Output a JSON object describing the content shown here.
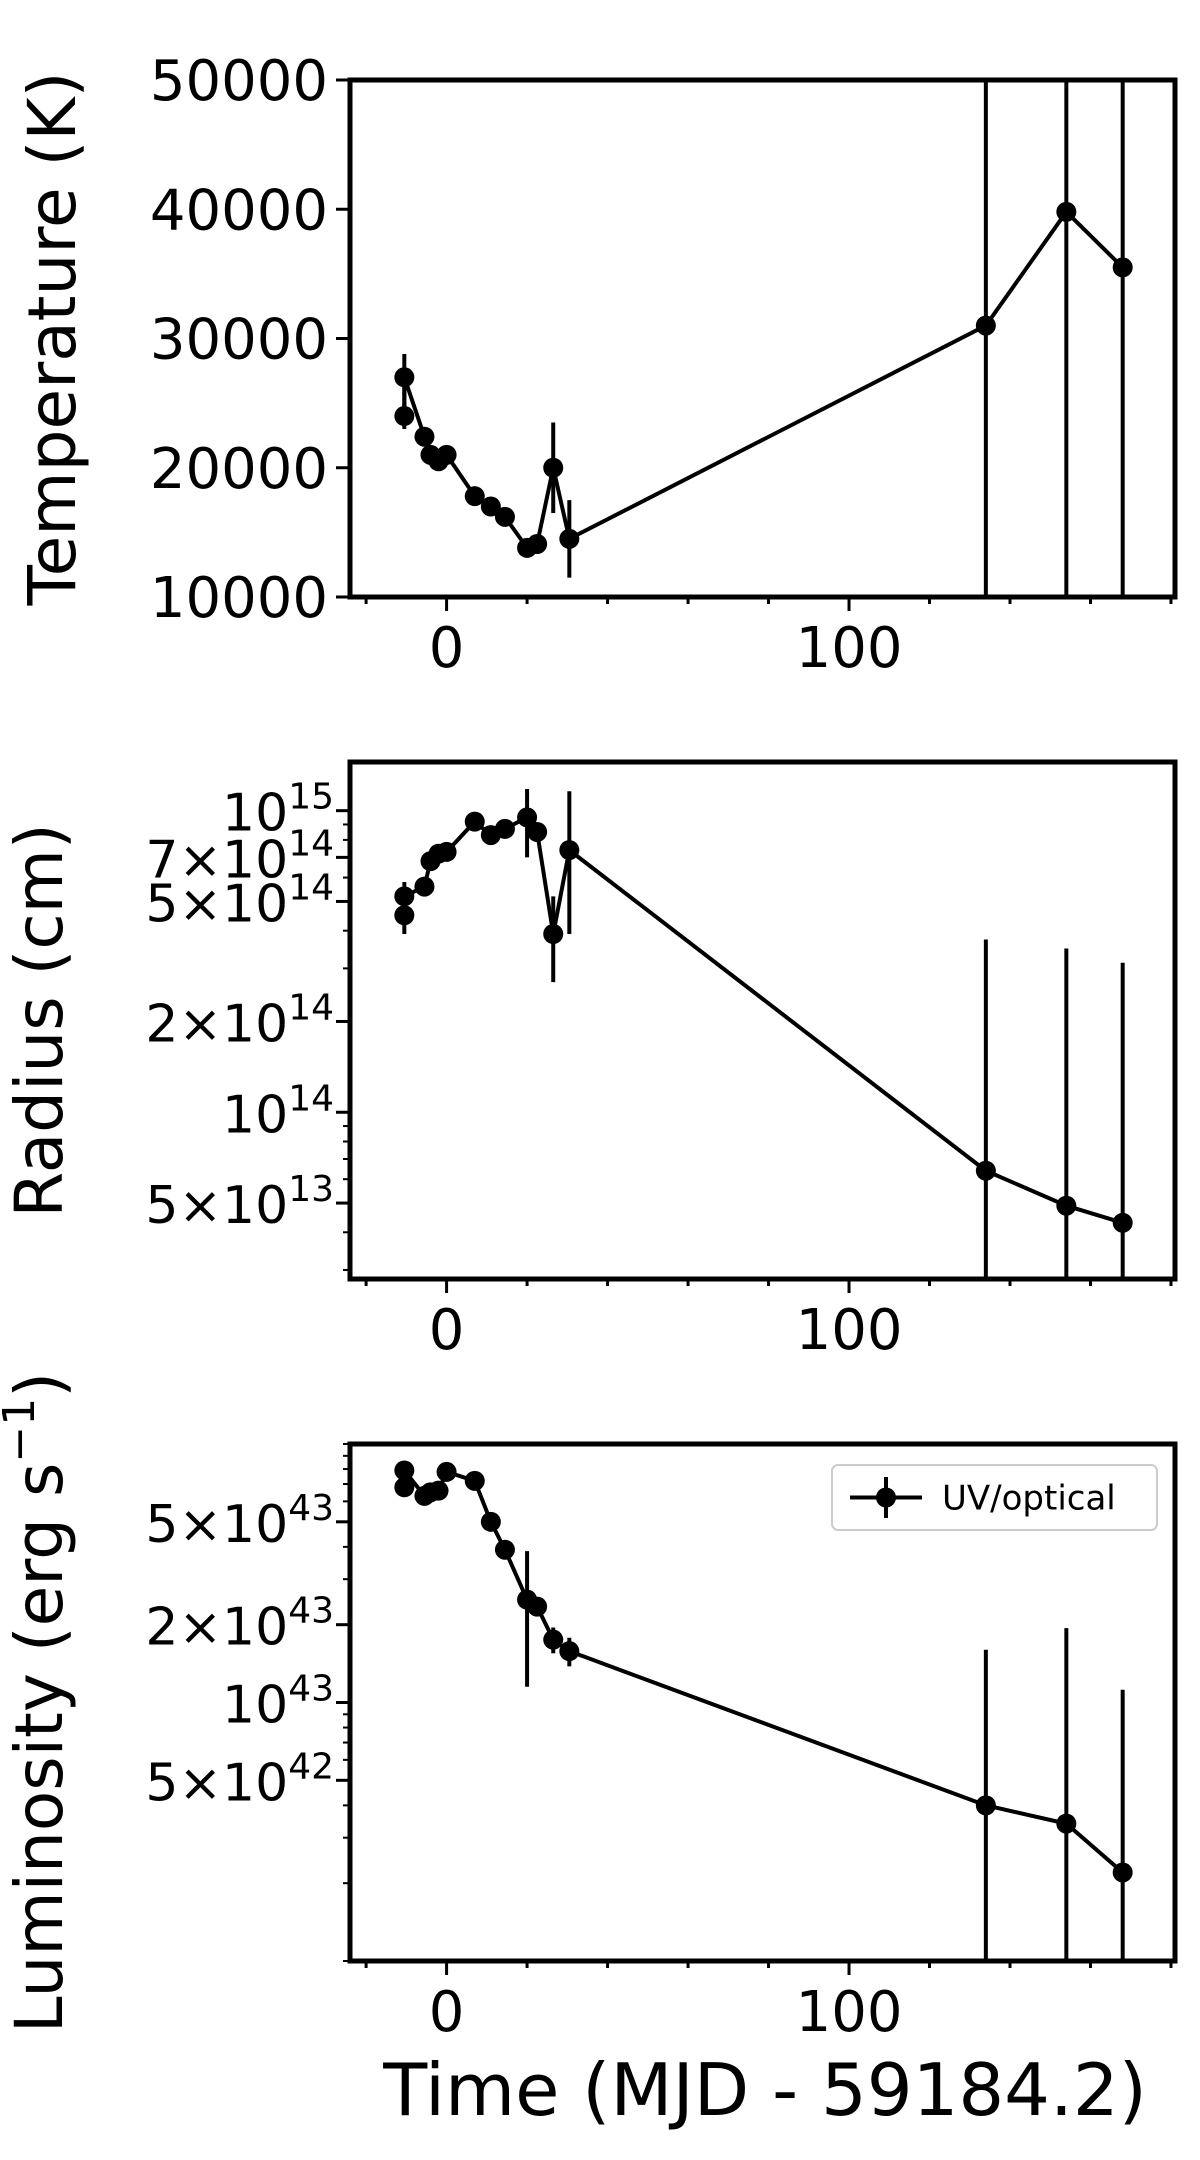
{
  "figure": {
    "xlabel": "Time (MJD - 59184.2)"
  },
  "chart_data": [
    {
      "type": "line",
      "ylabel": "Temperature (K)",
      "xlim": [
        -24,
        181
      ],
      "ylim": [
        10000,
        50000
      ],
      "yscale": "linear",
      "xticks": [
        0,
        100
      ],
      "xtick_labels": [
        "0",
        "100"
      ],
      "yticks": [
        10000,
        20000,
        30000,
        40000,
        50000
      ],
      "ytick_labels": [
        "10000",
        "20000",
        "30000",
        "40000",
        "50000"
      ],
      "series": [
        {
          "x": [
            -10.5,
            -10.5,
            -5.5,
            -4,
            -2,
            0,
            7,
            11,
            14.5,
            20,
            22.5,
            26.5,
            30.5,
            134,
            154,
            168
          ],
          "y": [
            24000,
            27000,
            22400,
            21000,
            20500,
            21000,
            17800,
            17000,
            16200,
            13800,
            14100,
            20000,
            14500,
            31000,
            39800,
            35500
          ],
          "yerr_low": [
            1000,
            3500,
            600,
            600,
            600,
            600,
            300,
            300,
            300,
            200,
            200,
            3500,
            3000,
            21000,
            29800,
            25500
          ],
          "yerr_high": [
            1000,
            1800,
            600,
            600,
            600,
            600,
            300,
            300,
            300,
            200,
            200,
            3500,
            3000,
            19000,
            10200,
            14500
          ]
        }
      ]
    },
    {
      "type": "line",
      "ylabel": "Radius (cm)",
      "xlim": [
        -24,
        181
      ],
      "ylim": [
        28000000000000.0,
        1450000000000000.0
      ],
      "yscale": "log",
      "xticks": [
        0,
        100
      ],
      "xtick_labels": [
        "0",
        "100"
      ],
      "ytick_values": [
        50000000000000.0,
        100000000000000.0,
        200000000000000.0,
        500000000000000.0,
        700000000000000.0,
        1000000000000000.0
      ],
      "ytick_mantissa": [
        "5×10",
        "10",
        "2×10",
        "5×10",
        "7×10",
        "10"
      ],
      "ytick_exponent": [
        "13",
        "14",
        "14",
        "14",
        "14",
        "15"
      ],
      "series": [
        {
          "x": [
            -10.5,
            -10.5,
            -5.5,
            -4,
            -2,
            0,
            7,
            11,
            14.5,
            20,
            22.5,
            26.5,
            30.5,
            134,
            154,
            168
          ],
          "y": [
            450000000000000.0,
            520000000000000.0,
            560000000000000.0,
            680000000000000.0,
            720000000000000.0,
            730000000000000.0,
            920000000000000.0,
            830000000000000.0,
            870000000000000.0,
            950000000000000.0,
            850000000000000.0,
            390000000000000.0,
            740000000000000.0,
            64000000000000.0,
            49000000000000.0,
            43000000000000.0
          ],
          "yerr_low": [
            60000000000000.0,
            60000000000000.0,
            40000000000000.0,
            30000000000000.0,
            30000000000000.0,
            30000000000000.0,
            30000000000000.0,
            30000000000000.0,
            30000000000000.0,
            250000000000000.0,
            30000000000000.0,
            120000000000000.0,
            350000000000000.0,
            37000000000000.0,
            23000000000000.0,
            18000000000000.0
          ],
          "yerr_high": [
            60000000000000.0,
            60000000000000.0,
            40000000000000.0,
            30000000000000.0,
            30000000000000.0,
            30000000000000.0,
            30000000000000.0,
            30000000000000.0,
            30000000000000.0,
            230000000000000.0,
            30000000000000.0,
            130000000000000.0,
            420000000000000.0,
            310000000000000.0,
            300000000000000.0,
            270000000000000.0
          ]
        }
      ]
    },
    {
      "type": "line",
      "ylabel": "Luminosity (erg s",
      "ylabel_superscript": "−1",
      "ylabel_suffix": ")",
      "xlim": [
        -24,
        181
      ],
      "ylim": [
        1e+42,
        1e+44
      ],
      "yscale": "log",
      "xticks": [
        0,
        100
      ],
      "xtick_labels": [
        "0",
        "100"
      ],
      "ytick_values": [
        5e+42,
        1e+43,
        2e+43,
        5e+43
      ],
      "ytick_mantissa": [
        "5×10",
        "10",
        "2×10",
        "5×10"
      ],
      "ytick_exponent": [
        "42",
        "43",
        "43",
        "43"
      ],
      "legend": {
        "label": "UV/optical",
        "position": "upper right"
      },
      "series": [
        {
          "name": "UV/optical",
          "x": [
            -10.5,
            -10.5,
            -5.5,
            -4,
            -2,
            0,
            7,
            11,
            14.5,
            20,
            22.5,
            26.5,
            30.5,
            134,
            154,
            168
          ],
          "y": [
            6.8e+43,
            7.9e+43,
            6.3e+43,
            6.5e+43,
            6.6e+43,
            7.8e+43,
            7.2e+43,
            5e+43,
            3.9e+43,
            2.5e+43,
            2.35e+43,
            1.75e+43,
            1.58e+43,
            4e+42,
            3.4e+42,
            2.2e+42
          ],
          "yerr_low": [
            3e+42,
            3e+42,
            3e+42,
            3e+42,
            3e+42,
            3e+42,
            3e+42,
            2e+42,
            2e+42,
            1.35e+43,
            1e+42,
            2e+42,
            2e+42,
            3e+42,
            2.4e+42,
            1.2e+42
          ],
          "yerr_high": [
            3e+42,
            3e+42,
            3e+42,
            3e+42,
            3e+42,
            3e+42,
            3e+42,
            2e+42,
            2e+42,
            1.35e+43,
            1e+42,
            2e+42,
            2e+42,
            1.2e+43,
            1.6e+43,
            9e+42
          ]
        }
      ]
    }
  ]
}
